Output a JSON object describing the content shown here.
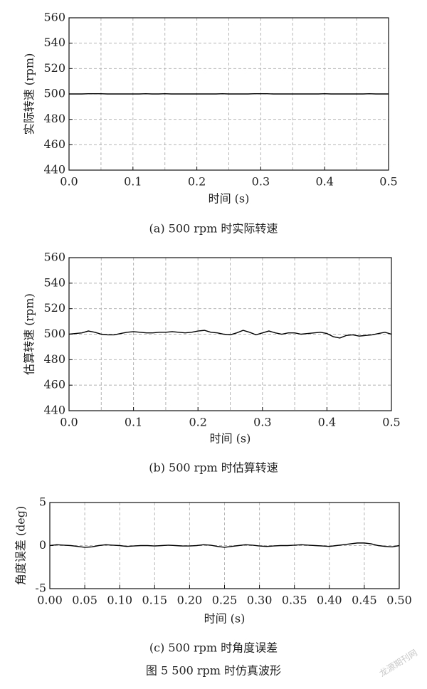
{
  "chart_data": [
    {
      "type": "line",
      "ylabel": "实际转速 (rpm)",
      "xlabel": "时间 (s)",
      "caption": "(a) 500 rpm 时实际转速",
      "color": "#000000",
      "x": [
        0,
        0.01,
        0.02,
        0.03,
        0.04,
        0.05,
        0.06,
        0.07,
        0.08,
        0.09,
        0.1,
        0.11,
        0.12,
        0.13,
        0.14,
        0.15,
        0.16,
        0.17,
        0.18,
        0.19,
        0.2,
        0.21,
        0.22,
        0.23,
        0.24,
        0.25,
        0.26,
        0.27,
        0.28,
        0.29,
        0.3,
        0.31,
        0.32,
        0.33,
        0.34,
        0.35,
        0.36,
        0.37,
        0.38,
        0.39,
        0.4,
        0.41,
        0.42,
        0.43,
        0.44,
        0.45,
        0.46,
        0.47,
        0.48,
        0.49,
        0.5
      ],
      "values": [
        500,
        500,
        500,
        500.2,
        500.2,
        500.2,
        500,
        500,
        500,
        500,
        500,
        500,
        500.2,
        500,
        500,
        500.2,
        500,
        500,
        500,
        500,
        500,
        500,
        500,
        500,
        500.2,
        500,
        500,
        500,
        500,
        500.2,
        500.2,
        500.2,
        500,
        500,
        500,
        500,
        500,
        500,
        500,
        500,
        500.2,
        500,
        500,
        500,
        500,
        500,
        500,
        500.2,
        500,
        500,
        500
      ],
      "xlim": [
        0,
        0.5
      ],
      "ylim": [
        440,
        560
      ],
      "xticks": [
        {
          "value": 0,
          "label": "0.0"
        },
        0.1,
        0.2,
        0.3,
        0.4,
        0.5
      ],
      "yticks": [
        440,
        460,
        480,
        500,
        520,
        540,
        560
      ],
      "xgrid": [
        0.05,
        0.1,
        0.15,
        0.2,
        0.25,
        0.3,
        0.35,
        0.4,
        0.45
      ],
      "grid": true
    },
    {
      "type": "line",
      "ylabel": "估算转速 (rpm)",
      "xlabel": "时间 (s)",
      "caption": "(b) 500 rpm 时估算转速",
      "color": "#000000",
      "x": [
        0,
        0.01,
        0.02,
        0.03,
        0.04,
        0.05,
        0.06,
        0.07,
        0.08,
        0.09,
        0.1,
        0.11,
        0.12,
        0.13,
        0.14,
        0.15,
        0.16,
        0.17,
        0.18,
        0.19,
        0.2,
        0.21,
        0.22,
        0.23,
        0.24,
        0.25,
        0.26,
        0.27,
        0.28,
        0.29,
        0.3,
        0.31,
        0.32,
        0.33,
        0.34,
        0.35,
        0.36,
        0.37,
        0.38,
        0.39,
        0.4,
        0.41,
        0.42,
        0.43,
        0.44,
        0.45,
        0.46,
        0.47,
        0.48,
        0.49,
        0.5
      ],
      "values": [
        500,
        500.5,
        501,
        502.5,
        501.5,
        500,
        499.5,
        499.5,
        500.5,
        501.5,
        502,
        501.5,
        501,
        501,
        501.5,
        501.5,
        502,
        501.5,
        501,
        501.5,
        502.5,
        503,
        501.5,
        501,
        500,
        499.5,
        501,
        503,
        501.5,
        499.5,
        501,
        502.5,
        501,
        500,
        501,
        501,
        500,
        500.5,
        501,
        501.5,
        500.5,
        498,
        497,
        499,
        499.5,
        498.5,
        499,
        499.5,
        500.5,
        501.5,
        500
      ],
      "xlim": [
        0,
        0.5
      ],
      "ylim": [
        440,
        560
      ],
      "xticks": [
        {
          "value": 0,
          "label": "0.0"
        },
        0.1,
        0.2,
        0.3,
        0.4,
        0.5
      ],
      "yticks": [
        440,
        460,
        480,
        500,
        520,
        540,
        560
      ],
      "xgrid": [
        0.05,
        0.1,
        0.15,
        0.2,
        0.25,
        0.3,
        0.35,
        0.4,
        0.45
      ],
      "grid": true
    },
    {
      "type": "line",
      "ylabel": "角度误差 (deg)",
      "xlabel": "时间 (s)",
      "caption": "(c) 500 rpm 时角度误差",
      "color": "#000000",
      "x": [
        0,
        0.01,
        0.02,
        0.03,
        0.04,
        0.05,
        0.06,
        0.07,
        0.08,
        0.09,
        0.1,
        0.11,
        0.12,
        0.13,
        0.14,
        0.15,
        0.16,
        0.17,
        0.18,
        0.19,
        0.2,
        0.21,
        0.22,
        0.23,
        0.24,
        0.25,
        0.26,
        0.27,
        0.28,
        0.29,
        0.3,
        0.31,
        0.32,
        0.33,
        0.34,
        0.35,
        0.36,
        0.37,
        0.38,
        0.39,
        0.4,
        0.41,
        0.42,
        0.43,
        0.44,
        0.45,
        0.46,
        0.47,
        0.48,
        0.49,
        0.5
      ],
      "values": [
        0,
        0.1,
        0.05,
        0,
        -0.1,
        -0.2,
        -0.15,
        0,
        0.1,
        0.05,
        0,
        -0.1,
        -0.05,
        0,
        0,
        -0.05,
        0,
        0.05,
        0,
        -0.05,
        -0.05,
        0,
        0.1,
        0.05,
        -0.1,
        -0.2,
        -0.1,
        0,
        0.1,
        0.05,
        -0.05,
        -0.1,
        -0.05,
        0,
        0,
        0.05,
        0.1,
        0.05,
        0,
        -0.05,
        -0.1,
        0,
        0.1,
        0.2,
        0.3,
        0.3,
        0.2,
        0,
        -0.1,
        -0.15,
        0
      ],
      "xlim": [
        0,
        0.5
      ],
      "ylim": [
        -5,
        5
      ],
      "xticks": [
        {
          "value": 0,
          "label": "0.00"
        },
        0.05,
        {
          "value": 0.1,
          "label": "0.10"
        },
        0.15,
        {
          "value": 0.2,
          "label": "0.20"
        },
        0.25,
        {
          "value": 0.3,
          "label": "0.30"
        },
        0.35,
        {
          "value": 0.4,
          "label": "0.40"
        },
        0.45,
        {
          "value": 0.5,
          "label": "0.50"
        }
      ],
      "yticks": [
        -5,
        0,
        5
      ],
      "xgrid": [
        0.05,
        0.1,
        0.15,
        0.2,
        0.25,
        0.3,
        0.35,
        0.4,
        0.45
      ],
      "grid": true
    }
  ],
  "figure_caption": "图 5   500 rpm 时仿真波形",
  "watermark": "龙源期刊网"
}
